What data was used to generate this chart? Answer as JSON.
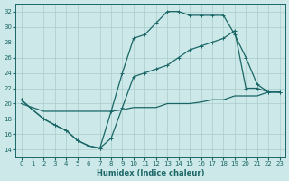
{
  "xlabel": "Humidex (Indice chaleur)",
  "ylabel": "",
  "bg_color": "#cce8e8",
  "grid_color": "#aacccc",
  "line_color": "#1a6666",
  "xlim": [
    -0.5,
    23.5
  ],
  "ylim": [
    13,
    33
  ],
  "xticks": [
    0,
    1,
    2,
    3,
    4,
    5,
    6,
    7,
    8,
    9,
    10,
    11,
    12,
    13,
    14,
    15,
    16,
    17,
    18,
    19,
    20,
    21,
    22,
    23
  ],
  "yticks": [
    14,
    16,
    18,
    20,
    22,
    24,
    26,
    28,
    30,
    32
  ],
  "line1_x": [
    0,
    1,
    2,
    3,
    4,
    5,
    6,
    7,
    8,
    9,
    10,
    11,
    12,
    13,
    14,
    15,
    16,
    17,
    18,
    19,
    20,
    21,
    22,
    23
  ],
  "line1_y": [
    20.5,
    19.2,
    18.0,
    17.2,
    16.5,
    15.2,
    14.5,
    14.2,
    19.0,
    24.0,
    28.5,
    29.0,
    30.5,
    32.0,
    32.0,
    31.5,
    31.5,
    31.5,
    31.5,
    29.0,
    26.0,
    22.5,
    21.5,
    21.5
  ],
  "line2_x": [
    0,
    1,
    2,
    3,
    4,
    5,
    6,
    7,
    8,
    9,
    10,
    11,
    12,
    13,
    14,
    15,
    16,
    17,
    18,
    19,
    20,
    21,
    22,
    23
  ],
  "line2_y": [
    20.5,
    19.2,
    18.0,
    17.2,
    16.5,
    15.2,
    14.5,
    14.2,
    15.5,
    19.5,
    23.5,
    24.0,
    24.5,
    25.0,
    26.0,
    27.0,
    27.5,
    28.0,
    28.5,
    29.5,
    22.0,
    22.0,
    21.5,
    21.5
  ],
  "line3_x": [
    0,
    1,
    2,
    3,
    4,
    5,
    6,
    7,
    8,
    9,
    10,
    11,
    12,
    13,
    14,
    15,
    16,
    17,
    18,
    19,
    20,
    21,
    22,
    23
  ],
  "line3_y": [
    20.0,
    19.5,
    19.0,
    19.0,
    19.0,
    19.0,
    19.0,
    19.0,
    19.0,
    19.2,
    19.5,
    19.5,
    19.5,
    20.0,
    20.0,
    20.0,
    20.2,
    20.5,
    20.5,
    21.0,
    21.0,
    21.0,
    21.5,
    21.5
  ]
}
